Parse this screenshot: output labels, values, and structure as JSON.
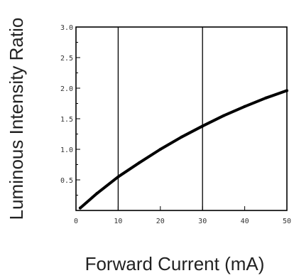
{
  "chart_data": {
    "type": "line",
    "title": "",
    "xlabel": "Forward Current (mA)",
    "ylabel": "Luminous Intensity Ratio",
    "xlim": [
      0,
      50
    ],
    "ylim": [
      0,
      3.0
    ],
    "x_ticks": [
      {
        "value": 0,
        "label": "0"
      },
      {
        "value": 10,
        "label": "10"
      },
      {
        "value": 20,
        "label": "20"
      },
      {
        "value": 30,
        "label": "30"
      },
      {
        "value": 40,
        "label": "40"
      },
      {
        "value": 50,
        "label": "50"
      }
    ],
    "y_ticks": [
      {
        "value": 0.5,
        "label": "0.5"
      },
      {
        "value": 1.0,
        "label": "1.0"
      },
      {
        "value": 1.5,
        "label": "1.5"
      },
      {
        "value": 2.0,
        "label": "2.0"
      },
      {
        "value": 2.5,
        "label": "2.5"
      },
      {
        "value": 3.0,
        "label": "3.0"
      }
    ],
    "vertical_gridlines": [
      10,
      30
    ],
    "series": [
      {
        "color": "#000000",
        "x": [
          1,
          5,
          10,
          15,
          20,
          25,
          30,
          35,
          40,
          45,
          50
        ],
        "y": [
          0.04,
          0.28,
          0.55,
          0.78,
          1.0,
          1.2,
          1.38,
          1.55,
          1.7,
          1.84,
          1.96
        ]
      }
    ]
  }
}
